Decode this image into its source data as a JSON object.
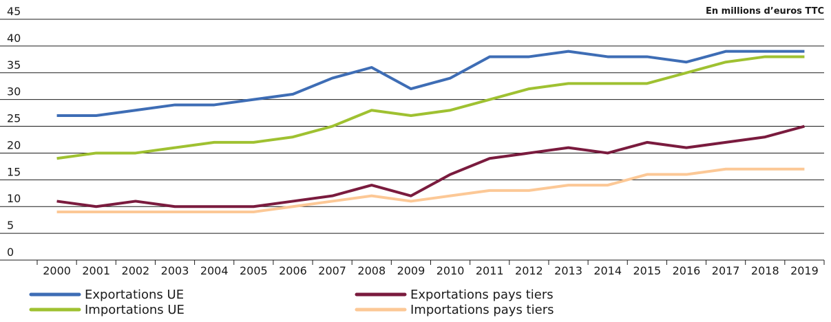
{
  "chart_data": {
    "type": "line",
    "unit_label": "En millions d’euros TTC",
    "categories": [
      "2000",
      "2001",
      "2002",
      "2003",
      "2004",
      "2005",
      "2006",
      "2007",
      "2008",
      "2009",
      "2010",
      "2011",
      "2012",
      "2013",
      "2014",
      "2015",
      "2016",
      "2017",
      "2018",
      "2019"
    ],
    "series": [
      {
        "name": "Exportations UE",
        "color": "#3e6db5",
        "values": [
          27,
          27,
          28,
          29,
          29,
          30,
          31,
          34,
          36,
          32,
          34,
          38,
          38,
          39,
          38,
          38,
          37,
          39,
          39,
          39
        ]
      },
      {
        "name": "Importations UE",
        "color": "#9fc131",
        "values": [
          19,
          20,
          20,
          21,
          22,
          22,
          23,
          25,
          28,
          27,
          28,
          30,
          32,
          33,
          33,
          33,
          35,
          37,
          38,
          38
        ]
      },
      {
        "name": "Exportations pays tiers",
        "color": "#7a1b3e",
        "values": [
          11,
          10,
          11,
          10,
          10,
          10,
          11,
          12,
          14,
          12,
          16,
          19,
          20,
          21,
          20,
          22,
          21,
          22,
          23,
          25
        ]
      },
      {
        "name": "Importations pays tiers",
        "color": "#fcc896",
        "values": [
          9,
          9,
          9,
          9,
          9,
          9,
          10,
          11,
          12,
          11,
          12,
          13,
          13,
          14,
          14,
          16,
          16,
          17,
          17,
          17
        ]
      }
    ],
    "ylim": [
      0,
      45
    ],
    "yticks": [
      0,
      5,
      10,
      15,
      20,
      25,
      30,
      35,
      40,
      45
    ],
    "grid": true
  }
}
